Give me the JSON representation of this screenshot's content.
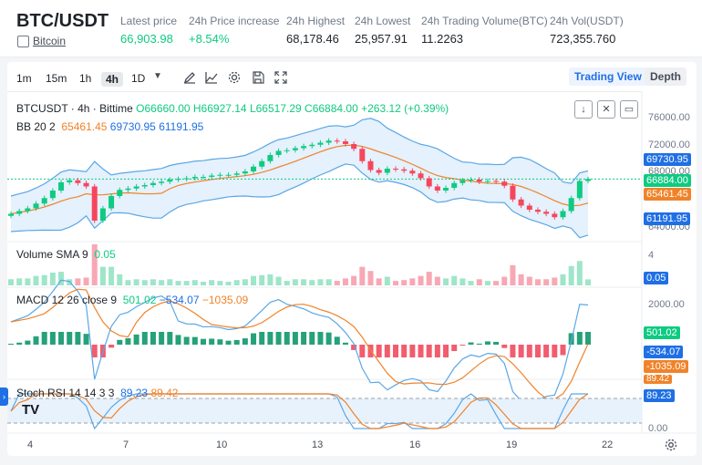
{
  "header": {
    "pair": "BTC/USDT",
    "coin_name": "Bitcoin",
    "stats": [
      {
        "label": "Latest price",
        "value": "66,903.98",
        "color": "green"
      },
      {
        "label": "24h Price increase",
        "value": "+8.54%",
        "color": "green"
      },
      {
        "label": "24h Highest",
        "value": "68,178.46",
        "color": "dark"
      },
      {
        "label": "24h Lowest",
        "value": "25,957.91",
        "color": "dark"
      },
      {
        "label": "24h Trading Volume(BTC)",
        "value": "11.2263",
        "color": "dark"
      },
      {
        "label": "24h Vol(USDT)",
        "value": "723,355.760",
        "color": "dark"
      }
    ]
  },
  "toolbar": {
    "intervals": [
      "1m",
      "15m",
      "1h",
      "4h",
      "1D"
    ],
    "active_interval": "4h",
    "trading_view_label": "Trading View",
    "depth_label": "Depth"
  },
  "legend": {
    "title": "BTCUSDT · 4h · Bittime",
    "o": "O66660.00",
    "h": "H66927.14",
    "l": "L66517.29",
    "c": "C66884.00",
    "change": "+263.12 (+0.39%)",
    "bb_name": "BB 20 2",
    "bb_basis": "65461.45",
    "bb_upper": "69730.95",
    "bb_lower": "61191.95",
    "vol_name": "Volume SMA 9",
    "vol_value": "0.05",
    "macd_name": "MACD 12 26 close 9",
    "macd_hist": "501.02",
    "macd_line": "−534.07",
    "macd_signal": "−1035.09",
    "stoch_name": "Stoch RSI 14 14 3 3",
    "stoch_k": "89.23",
    "stoch_d": "89.42"
  },
  "axis": {
    "price_ticks": [
      "76000.00",
      "72000.00",
      "68000.00",
      "64000.00"
    ],
    "price_tags": [
      "69730.95",
      "66884.00",
      "65461.45",
      "61191.95"
    ],
    "volume_ticks": [
      "4"
    ],
    "volume_tag": "0.05",
    "macd_ticks": [
      "2000.00"
    ],
    "macd_tags": [
      "501.02",
      "-534.07",
      "-1035.09"
    ],
    "stoch_ticks": [
      "0.00"
    ],
    "stoch_tags": [
      "89.42",
      "89.23"
    ],
    "x_ticks": [
      "4",
      "7",
      "10",
      "13",
      "16",
      "19",
      "22"
    ]
  },
  "colors": {
    "up": "#0ecb81",
    "down": "#f6465d",
    "basis": "#f0832a",
    "band": "#5aa7e6",
    "accent": "#1f6fe5"
  },
  "chart_data": {
    "type": "candlestick",
    "close_series": [
      61800,
      62200,
      62600,
      63300,
      64100,
      65200,
      66400,
      66700,
      66300,
      65800,
      60800,
      62600,
      64400,
      65300,
      65500,
      65800,
      66000,
      66300,
      66500,
      66800,
      66900,
      67000,
      67200,
      67200,
      67400,
      67500,
      67500,
      67700,
      68000,
      68700,
      69500,
      70400,
      71000,
      71100,
      71400,
      71700,
      71900,
      72200,
      72500,
      72400,
      72000,
      71300,
      69500,
      68200,
      67800,
      68400,
      68300,
      68100,
      67700,
      67000,
      65800,
      65200,
      65600,
      66300,
      66700,
      66800,
      66500,
      66600,
      66500,
      65900,
      63900,
      63000,
      62400,
      62100,
      61800,
      61300,
      62200,
      64100,
      66600,
      66884
    ]
  }
}
